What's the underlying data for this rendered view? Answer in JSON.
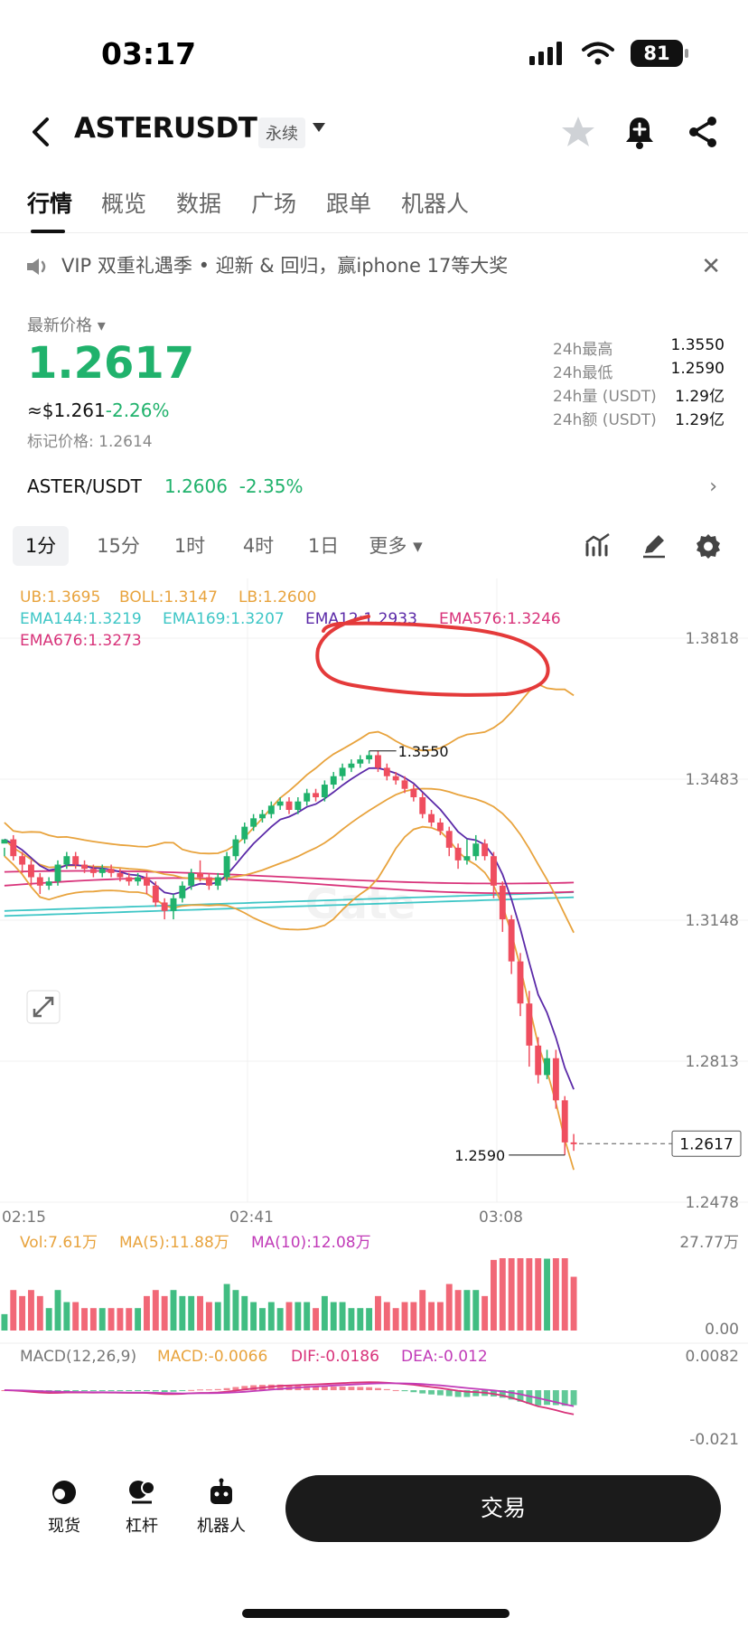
{
  "status": {
    "time": "03:17",
    "battery": "81"
  },
  "header": {
    "pair": "ASTERUSDT",
    "badge": "永续",
    "star_icon": "star-icon",
    "alert_icon": "bell-plus-icon",
    "share_icon": "share-icon"
  },
  "tabs": [
    "行情",
    "概览",
    "数据",
    "广场",
    "跟单",
    "机器人"
  ],
  "banner": {
    "text": "VIP 双重礼遇季 • 迎新 & 回归，赢iphone 17等大奖"
  },
  "price": {
    "label": "最新价格",
    "last": "1.2617",
    "usd_prefix": "≈$1.261",
    "usd_change": "-2.26%",
    "mark": "标记价格: 1.2614",
    "stats": [
      {
        "label": "24h最高",
        "value": "1.3550"
      },
      {
        "label": "24h最低",
        "value": "1.2590"
      },
      {
        "label": "24h量 (USDT)",
        "value": "1.29亿"
      },
      {
        "label": "24h额 (USDT)",
        "value": "1.29亿"
      }
    ]
  },
  "spot": {
    "pair": "ASTER/USDT",
    "price": "1.2606",
    "change": "-2.35%"
  },
  "timeframes": {
    "items": [
      "1分",
      "15分",
      "1时",
      "4时",
      "1日"
    ],
    "more": "更多"
  },
  "chart_data": {
    "type": "candlestick",
    "indicators": {
      "ub": "UB:1.3695",
      "boll": "BOLL:1.3147",
      "lb": "LB:1.2600",
      "ema144": "EMA144:1.3219",
      "ema169": "EMA169:1.3207",
      "ema12": "EMA12:1.2933",
      "ema576": "EMA576:1.3246",
      "ema676": "EMA676:1.3273"
    },
    "y_ticks": [
      "1.3818",
      "1.3483",
      "1.3148",
      "1.2813",
      "1.2478"
    ],
    "y_range": [
      1.2478,
      1.3818
    ],
    "x_ticks": [
      "02:15",
      "02:41",
      "03:08"
    ],
    "high_label": "1.3550",
    "low_label": "1.2590",
    "current_label": "1.2617",
    "candles": [
      [
        1.333,
        1.334,
        1.332,
        1.33
      ],
      [
        1.334,
        1.33,
        1.335,
        1.329
      ],
      [
        1.33,
        1.328,
        1.331,
        1.326
      ],
      [
        1.328,
        1.325,
        1.329,
        1.323
      ],
      [
        1.325,
        1.323,
        1.326,
        1.321
      ],
      [
        1.323,
        1.324,
        1.325,
        1.322
      ],
      [
        1.324,
        1.328,
        1.329,
        1.323
      ],
      [
        1.328,
        1.33,
        1.331,
        1.327
      ],
      [
        1.33,
        1.328,
        1.331,
        1.327
      ],
      [
        1.328,
        1.327,
        1.329,
        1.326
      ],
      [
        1.327,
        1.326,
        1.328,
        1.325
      ],
      [
        1.326,
        1.327,
        1.328,
        1.325
      ],
      [
        1.327,
        1.326,
        1.328,
        1.325
      ],
      [
        1.326,
        1.325,
        1.327,
        1.324
      ],
      [
        1.325,
        1.324,
        1.326,
        1.323
      ],
      [
        1.324,
        1.325,
        1.326,
        1.323
      ],
      [
        1.325,
        1.323,
        1.326,
        1.321
      ],
      [
        1.323,
        1.319,
        1.324,
        1.318
      ],
      [
        1.319,
        1.317,
        1.32,
        1.315
      ],
      [
        1.317,
        1.32,
        1.321,
        1.315
      ],
      [
        1.32,
        1.323,
        1.324,
        1.319
      ],
      [
        1.323,
        1.326,
        1.327,
        1.322
      ],
      [
        1.326,
        1.325,
        1.329,
        1.324
      ],
      [
        1.325,
        1.323,
        1.326,
        1.322
      ],
      [
        1.323,
        1.325,
        1.326,
        1.322
      ],
      [
        1.325,
        1.33,
        1.331,
        1.324
      ],
      [
        1.33,
        1.334,
        1.335,
        1.329
      ],
      [
        1.334,
        1.337,
        1.338,
        1.333
      ],
      [
        1.337,
        1.339,
        1.34,
        1.336
      ],
      [
        1.339,
        1.34,
        1.341,
        1.338
      ],
      [
        1.34,
        1.342,
        1.343,
        1.339
      ],
      [
        1.342,
        1.343,
        1.344,
        1.341
      ],
      [
        1.343,
        1.341,
        1.344,
        1.34
      ],
      [
        1.341,
        1.343,
        1.344,
        1.34
      ],
      [
        1.343,
        1.345,
        1.346,
        1.342
      ],
      [
        1.345,
        1.344,
        1.346,
        1.343
      ],
      [
        1.344,
        1.347,
        1.348,
        1.343
      ],
      [
        1.347,
        1.349,
        1.35,
        1.346
      ],
      [
        1.349,
        1.351,
        1.352,
        1.348
      ],
      [
        1.351,
        1.352,
        1.353,
        1.35
      ],
      [
        1.352,
        1.353,
        1.354,
        1.351
      ],
      [
        1.353,
        1.354,
        1.355,
        1.352
      ],
      [
        1.354,
        1.351,
        1.355,
        1.35
      ],
      [
        1.351,
        1.349,
        1.352,
        1.348
      ],
      [
        1.349,
        1.348,
        1.35,
        1.347
      ],
      [
        1.348,
        1.346,
        1.349,
        1.345
      ],
      [
        1.346,
        1.344,
        1.347,
        1.343
      ],
      [
        1.344,
        1.34,
        1.345,
        1.339
      ],
      [
        1.34,
        1.338,
        1.341,
        1.337
      ],
      [
        1.338,
        1.336,
        1.339,
        1.335
      ],
      [
        1.336,
        1.332,
        1.337,
        1.33
      ],
      [
        1.332,
        1.329,
        1.333,
        1.327
      ],
      [
        1.329,
        1.33,
        1.334,
        1.328
      ],
      [
        1.33,
        1.333,
        1.335,
        1.329
      ],
      [
        1.333,
        1.33,
        1.334,
        1.329
      ],
      [
        1.33,
        1.323,
        1.331,
        1.32
      ],
      [
        1.323,
        1.315,
        1.324,
        1.312
      ],
      [
        1.315,
        1.305,
        1.316,
        1.302
      ],
      [
        1.305,
        1.295,
        1.307,
        1.292
      ],
      [
        1.295,
        1.285,
        1.298,
        1.28
      ],
      [
        1.285,
        1.278,
        1.287,
        1.276
      ],
      [
        1.278,
        1.282,
        1.284,
        1.277
      ],
      [
        1.282,
        1.272,
        1.284,
        1.27
      ],
      [
        1.272,
        1.262,
        1.273,
        1.259
      ],
      [
        1.262,
        1.2617,
        1.264,
        1.26
      ]
    ],
    "volume_label": "Vol:7.61万",
    "ma5_label": "MA(5):11.88万",
    "ma10_label": "MA(10):12.08万",
    "vol_max_label": "27.77万",
    "vol_min_label": "0.00",
    "macd_label": "MACD(12,26,9)",
    "macd_value": "MACD:-0.0066",
    "dif_value": "DIF:-0.0186",
    "dea_value": "DEA:-0.012",
    "macd_max_label": "0.0082",
    "macd_min_label": "-0.021"
  },
  "colors": {
    "up": "#20b26c",
    "down": "#ef4e5f",
    "ub": "#e8a33d",
    "ema12": "#5b2aa8",
    "ema144": "#3ec6c6",
    "ema576": "#d8337a"
  },
  "bottom_nav": {
    "items": [
      {
        "label": "现货",
        "icon": "spot-icon"
      },
      {
        "label": "杠杆",
        "icon": "margin-icon"
      },
      {
        "label": "机器人",
        "icon": "robot-icon"
      }
    ],
    "trade": "交易"
  }
}
